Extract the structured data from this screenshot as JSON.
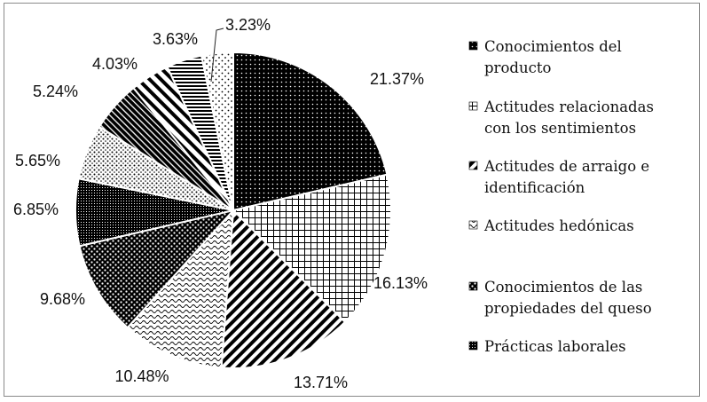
{
  "chart_data": {
    "type": "pie",
    "title": "",
    "slices": [
      {
        "value": 21.37,
        "label": "21.37%",
        "pattern": "solid-dots"
      },
      {
        "value": 16.13,
        "label": "16.13%",
        "pattern": "grid"
      },
      {
        "value": 13.71,
        "label": "13.71%",
        "pattern": "diag-stripes"
      },
      {
        "value": 10.48,
        "label": "10.48%",
        "pattern": "waves"
      },
      {
        "value": 9.68,
        "label": "9.68%",
        "pattern": "checker"
      },
      {
        "value": 6.85,
        "label": "6.85%",
        "pattern": "dense-dots"
      },
      {
        "value": 5.65,
        "label": "5.65%",
        "pattern": "sparse-dots"
      },
      {
        "value": 5.24,
        "label": "5.24%",
        "pattern": "dark-diag"
      },
      {
        "value": 4.03,
        "label": "4.03%",
        "pattern": "wide-diag"
      },
      {
        "value": 3.63,
        "label": "3.63%",
        "pattern": "horiz-lines"
      },
      {
        "value": 3.23,
        "label": "3.23%",
        "pattern": "light-dots"
      }
    ],
    "legend": [
      {
        "lines": [
          "Conocimientos del",
          "producto"
        ],
        "pattern": "solid-dots"
      },
      {
        "lines": [
          "Actitudes relacionadas",
          "con los sentimientos"
        ],
        "pattern": "grid"
      },
      {
        "lines": [
          "Actitudes de arraigo e",
          "identificación"
        ],
        "pattern": "diag-stripes"
      },
      {
        "lines": [
          "Actitudes hedónicas"
        ],
        "pattern": "waves"
      },
      {
        "lines": [
          "Conocimientos  de las",
          "propiedades del queso"
        ],
        "pattern": "checker"
      },
      {
        "lines": [
          "Prácticas laborales"
        ],
        "pattern": "dense-dots"
      }
    ],
    "legend_position": "right"
  }
}
